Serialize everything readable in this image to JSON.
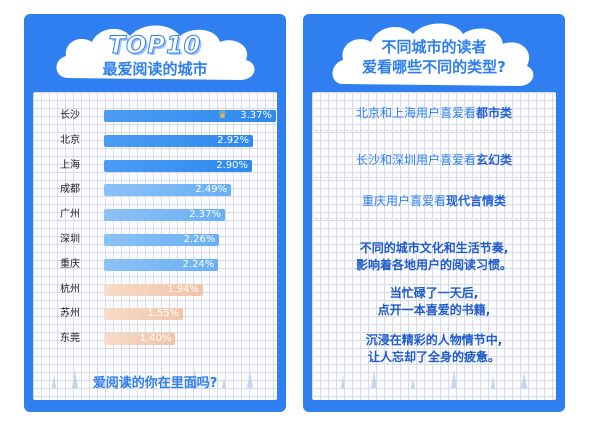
{
  "left_panel": {
    "title_top": "TOP10",
    "title_bottom": "最爱阅读的城市",
    "footer_question": "爱阅读的你在里面吗?"
  },
  "right_panel": {
    "title_line1": "不同城市的读者",
    "title_line2": "爱看哪些不同的类型?",
    "preferences": [
      {
        "prefix": "北京和上海用户喜爱看",
        "genre": "都市类"
      },
      {
        "prefix": "长沙和深圳用户喜爱看",
        "genre": "玄幻类"
      },
      {
        "prefix": "重庆用户喜爱看",
        "genre": "现代言情类"
      }
    ],
    "paragraphs": [
      [
        "不同的城市文化和生活节奏,",
        "影响着各地用户的阅读习惯。"
      ],
      [
        "当忙碌了一天后,",
        "点开一本喜爱的书籍,"
      ],
      [
        "沉浸在精彩的人物情节中,",
        "让人忘却了全身的疲惫。"
      ]
    ]
  },
  "chart_data": {
    "type": "bar",
    "orientation": "horizontal",
    "title": "TOP10 最爱阅读的城市",
    "categories": [
      "长沙",
      "北京",
      "上海",
      "成都",
      "广州",
      "深圳",
      "重庆",
      "杭州",
      "苏州",
      "东莞"
    ],
    "values": [
      3.37,
      2.92,
      2.9,
      2.49,
      2.37,
      2.26,
      2.24,
      1.94,
      1.55,
      1.4
    ],
    "value_labels": [
      "3.37%",
      "2.92%",
      "2.90%",
      "2.49%",
      "2.37%",
      "2.26%",
      "2.24%",
      "1.94%",
      "1.55%",
      "1.40%"
    ],
    "unit": "%",
    "top_marker_icon": "crown-icon",
    "colors": {
      "high": "#2f88f0",
      "mid": "#6aaff4",
      "low": "#f2c3a6"
    }
  }
}
